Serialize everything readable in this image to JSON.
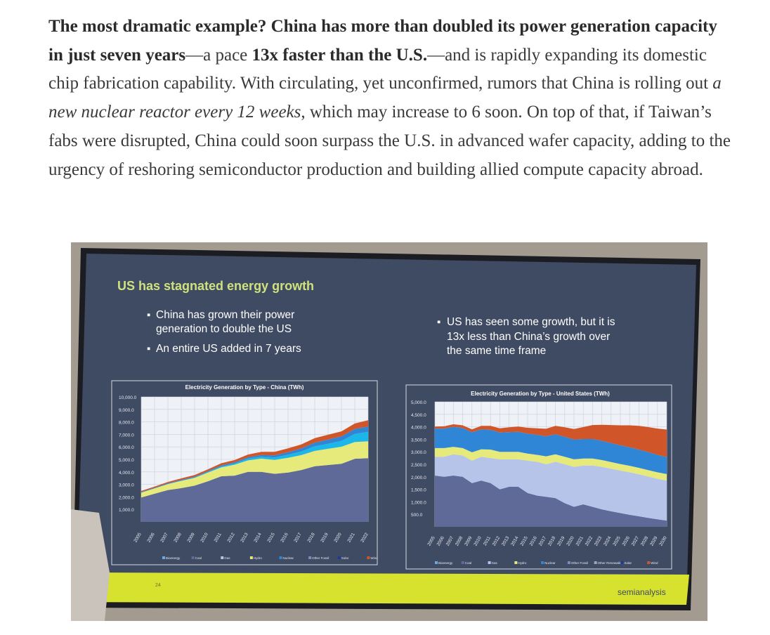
{
  "article": {
    "bold1": "The most dramatic example? China has more than doubled its power generation capacity in just seven years",
    "t1": "—a pace ",
    "bold2": "13x faster than the U.S.",
    "t2": "—and is rapidly expanding its domestic chip fabrication capability. With circulating, yet unconfirmed, rumors that China is rolling out ",
    "italic": "a new nuclear reactor every 12 weeks",
    "t3": ", which may increase to 6 soon. On top of that, if Taiwan’s fabs were disrupted, China could soon surpass the U.S. in advanced wafer capacity, adding to the urgency of reshoring semiconductor production and building allied compute capacity abroad."
  },
  "slide": {
    "title": "US has stagnated energy growth",
    "bullets_left": [
      "China has grown their power",
      "generation to double the US",
      "An entire US added in 7 years"
    ],
    "bullets_right": [
      "US has seen some growth, but it is",
      "13x less than China’s growth over",
      "the same time frame"
    ],
    "page": "24",
    "logo": "semianalysis",
    "colors": {
      "bg": "#3f4a63",
      "band": "#d7e22f",
      "coal": "#5f6a99",
      "gas": "#b7c4ea",
      "hydro": "#e5ea7a",
      "nuclear": "#2f86d6",
      "wind": "#1bb7e8",
      "solar": "#203a9c",
      "other": "#d0562a"
    }
  },
  "chart_data": [
    {
      "type": "area",
      "title": "Electricity Generation by Type - China (TWh)",
      "y_ticks": [
        "10,000.0",
        "9,000.0",
        "8,000.0",
        "7,000.0",
        "6,000.0",
        "5,000.0",
        "4,000.0",
        "3,000.0",
        "2,000.0",
        "1,000.0"
      ],
      "x": [
        "2005",
        "2006",
        "2007",
        "2008",
        "2009",
        "2010",
        "2011",
        "2012",
        "2013",
        "2014",
        "2015",
        "2016",
        "2017",
        "2018",
        "2019",
        "2020",
        "2021",
        "2022"
      ],
      "legend": [
        "Bioenergy",
        "Coal",
        "Gas",
        "Hydro",
        "Nuclear",
        "Other Fossil",
        "Solar",
        "Wind"
      ],
      "ylim": [
        0,
        10000
      ],
      "series": [
        {
          "name": "Coal",
          "values": [
            1950,
            2250,
            2550,
            2700,
            2900,
            3250,
            3650,
            3700,
            4000,
            4000,
            3850,
            3950,
            4150,
            4450,
            4550,
            4650,
            5050,
            5100
          ]
        },
        {
          "name": "Hydro",
          "values": [
            400,
            430,
            480,
            580,
            620,
            700,
            710,
            880,
            920,
            1060,
            1110,
            1180,
            1190,
            1230,
            1300,
            1360,
            1340,
            1350
          ]
        },
        {
          "name": "Wind",
          "values": [
            0,
            0,
            5,
            15,
            30,
            50,
            80,
            100,
            140,
            160,
            190,
            240,
            290,
            370,
            400,
            470,
            650,
            760
          ]
        },
        {
          "name": "Nuclear",
          "values": [
            50,
            50,
            60,
            70,
            70,
            70,
            80,
            90,
            110,
            130,
            170,
            210,
            250,
            290,
            340,
            360,
            400,
            420
          ]
        },
        {
          "name": "Other",
          "values": [
            80,
            90,
            100,
            120,
            130,
            140,
            170,
            180,
            220,
            250,
            280,
            300,
            320,
            360,
            380,
            400,
            430,
            500
          ]
        }
      ]
    },
    {
      "type": "area",
      "title": "Electricity Generation by Type - United States (TWh)",
      "y_ticks": [
        "5,000.0",
        "4,500.0",
        "4,000.0",
        "3,500.0",
        "3,000.0",
        "2,500.0",
        "2,000.0",
        "1,500.0",
        "1,000.0",
        "500.0"
      ],
      "x": [
        "2005",
        "2006",
        "2007",
        "2008",
        "2009",
        "2010",
        "2011",
        "2012",
        "2013",
        "2014",
        "2015",
        "2016",
        "2017",
        "2018",
        "2019",
        "2020",
        "2021",
        "2022",
        "2023",
        "2024",
        "2025",
        "2026",
        "2027",
        "2028",
        "2029",
        "2030"
      ],
      "legend": [
        "Bioenergy",
        "Coal",
        "Gas",
        "Hydro",
        "Nuclear",
        "Other Fossil",
        "Other Renewables",
        "Solar",
        "Wind"
      ],
      "ylim": [
        0,
        5000
      ],
      "series": [
        {
          "name": "Coal",
          "values": [
            2050,
            2000,
            2050,
            2000,
            1750,
            1850,
            1750,
            1500,
            1600,
            1600,
            1350,
            1250,
            1200,
            1150,
            950,
            800,
            900,
            800,
            700,
            620,
            550,
            480,
            420,
            360,
            300,
            250
          ]
        },
        {
          "name": "Gas",
          "values": [
            750,
            800,
            850,
            850,
            900,
            950,
            1000,
            1200,
            1100,
            1100,
            1300,
            1350,
            1300,
            1450,
            1550,
            1600,
            1550,
            1650,
            1700,
            1700,
            1700,
            1700,
            1680,
            1650,
            1620,
            1600
          ]
        },
        {
          "name": "Hydro",
          "values": [
            350,
            350,
            300,
            300,
            330,
            300,
            340,
            300,
            300,
            300,
            280,
            280,
            320,
            300,
            300,
            300,
            280,
            280,
            270,
            270,
            260,
            260,
            260,
            260,
            260,
            260
          ]
        },
        {
          "name": "Nuclear",
          "values": [
            780,
            780,
            800,
            800,
            800,
            800,
            790,
            770,
            790,
            800,
            800,
            800,
            800,
            800,
            800,
            790,
            780,
            780,
            770,
            760,
            750,
            740,
            730,
            720,
            700,
            680
          ]
        },
        {
          "name": "Other",
          "values": [
            80,
            90,
            100,
            110,
            120,
            140,
            160,
            170,
            190,
            210,
            230,
            260,
            300,
            340,
            380,
            420,
            480,
            560,
            640,
            720,
            800,
            880,
            950,
            1000,
            1050,
            1100
          ]
        }
      ]
    }
  ]
}
